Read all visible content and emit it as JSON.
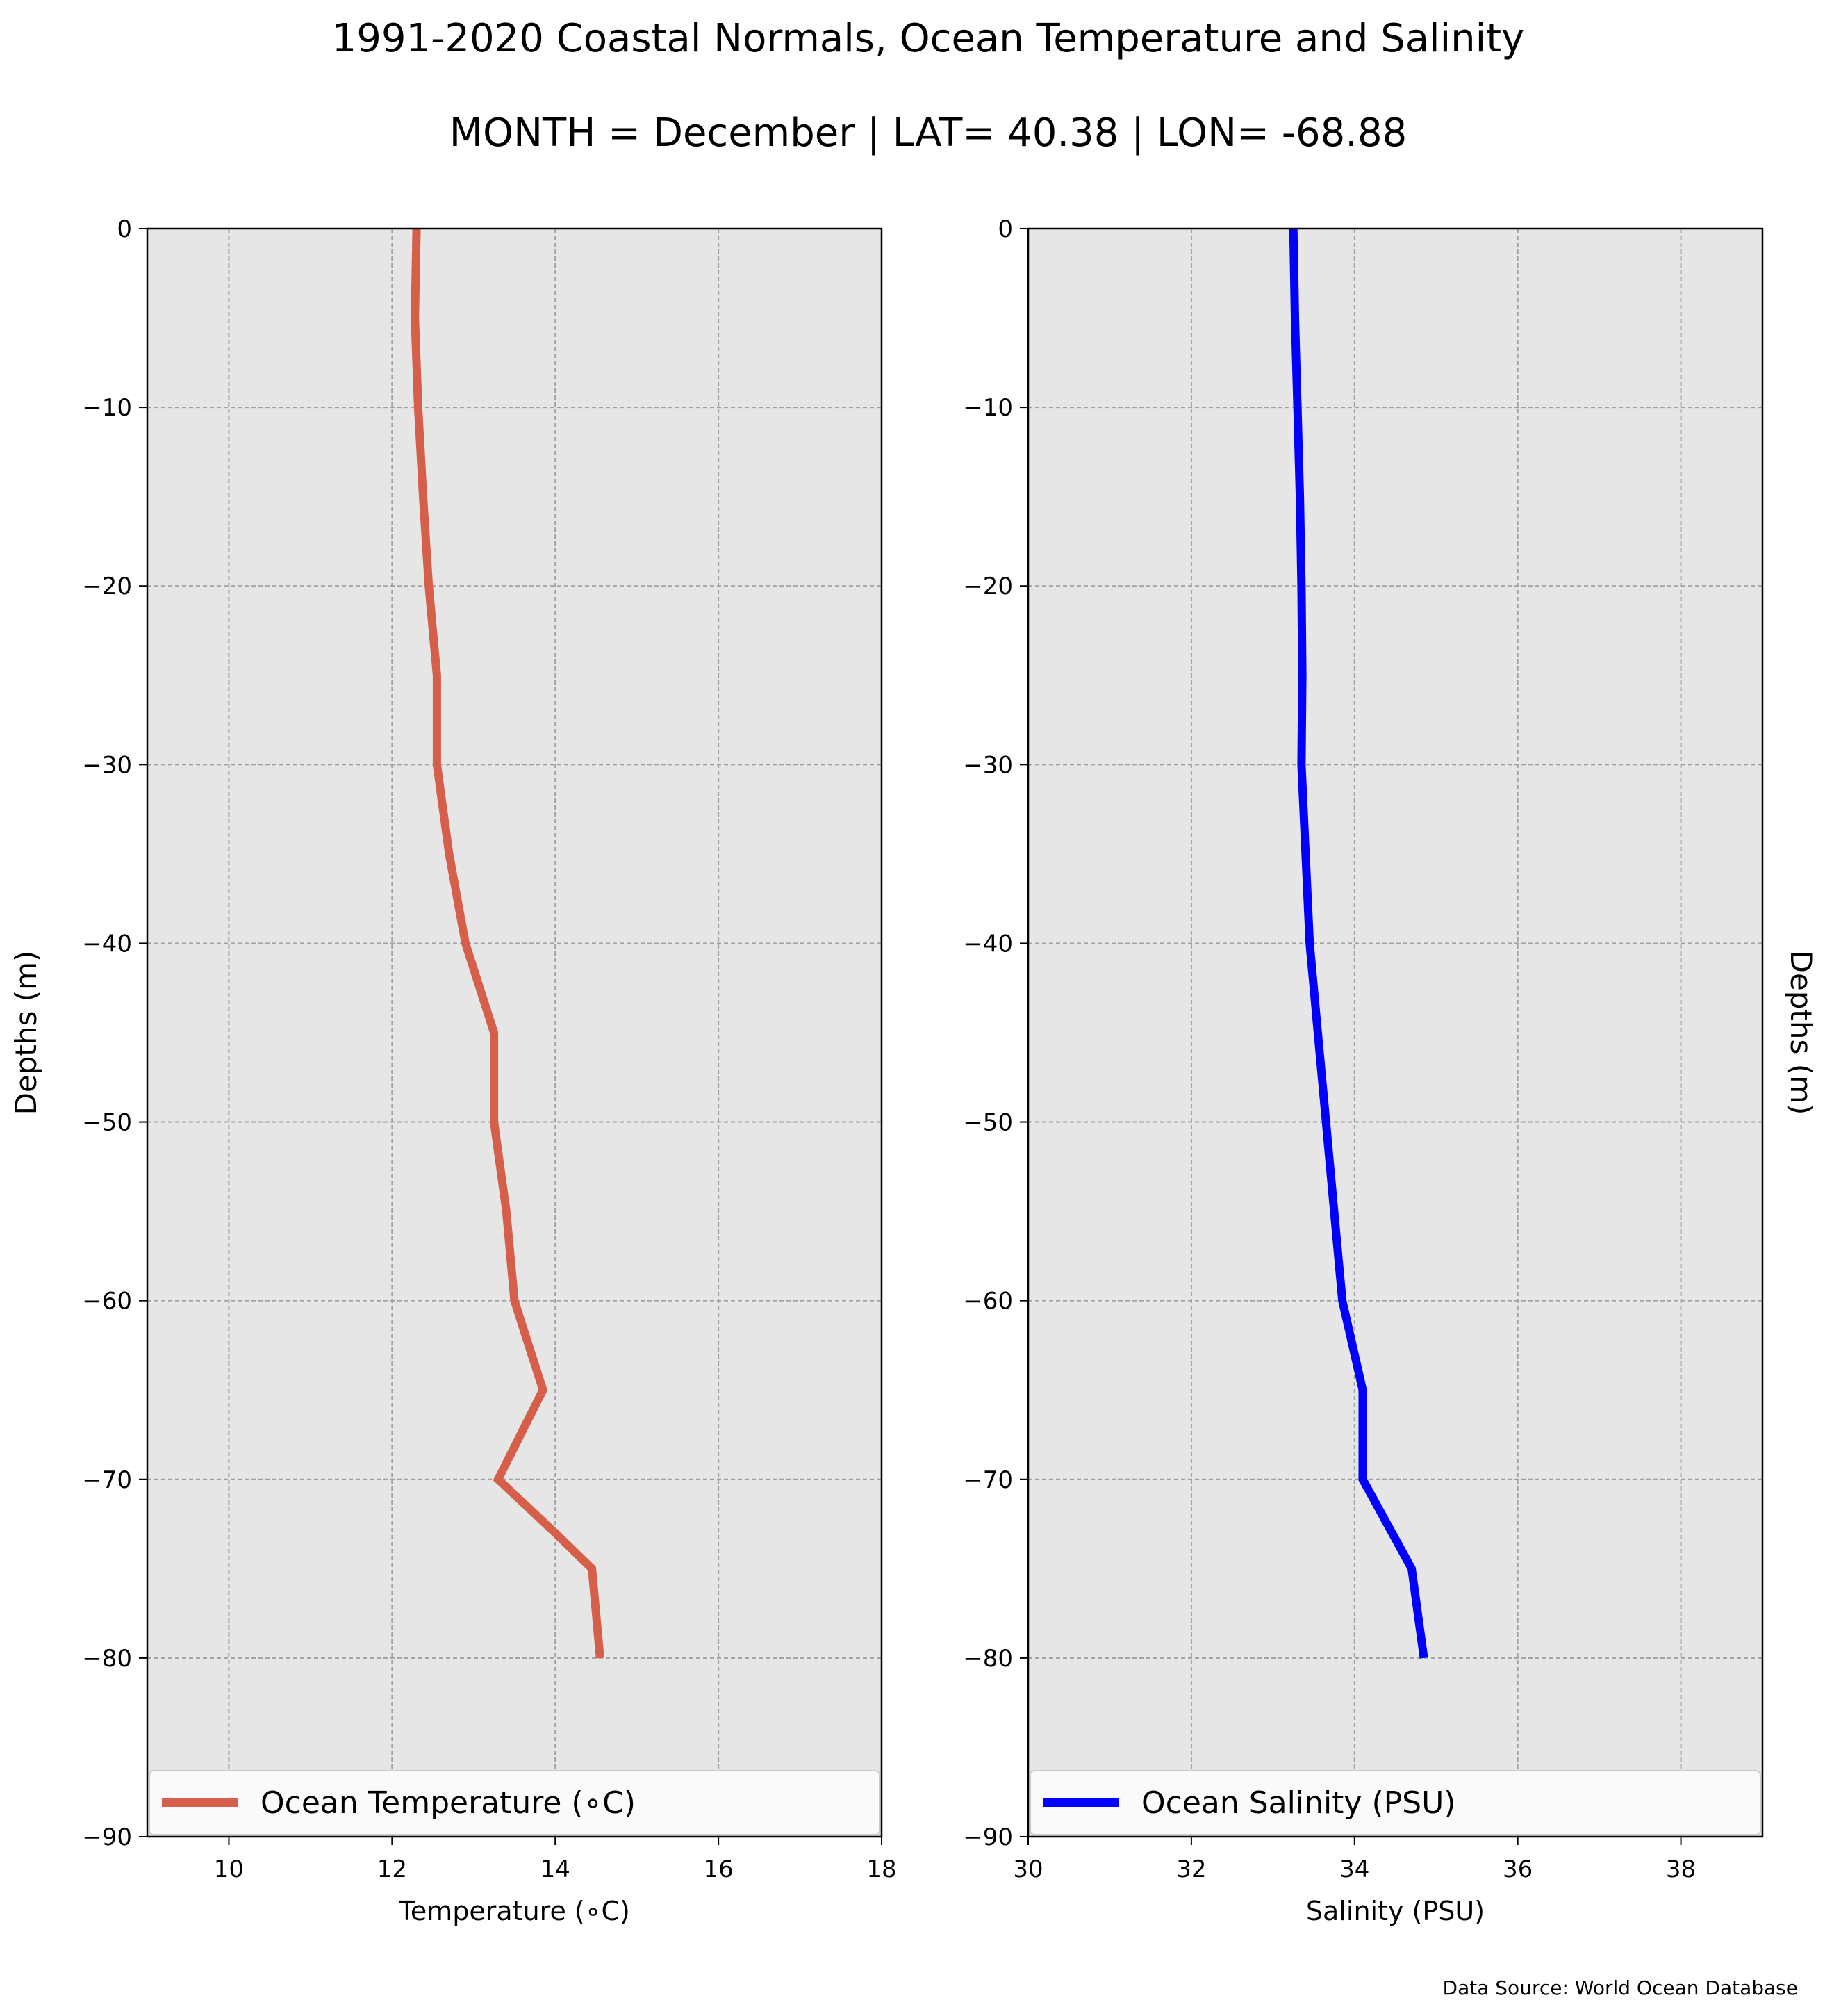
{
  "title": "1991-2020 Coastal Normals, Ocean Temperature and Salinity",
  "subtitle": "MONTH = December | LAT= 40.38 | LON= -68.88",
  "source": "Data Source: World Ocean Database",
  "colors": {
    "plot_bg": "#e6e6e6",
    "grid": "#a0a0a0",
    "temperature": "#d65f4b",
    "salinity": "#0000ff"
  },
  "chart_data": [
    {
      "type": "line",
      "xlabel": "Temperature (∘C)",
      "ylabel": "Depths (m)",
      "xlim": [
        9,
        18
      ],
      "ylim": [
        -90,
        0
      ],
      "xticks": [
        10,
        12,
        14,
        16,
        18
      ],
      "yticks": [
        0,
        -10,
        -20,
        -30,
        -40,
        -50,
        -60,
        -70,
        -80,
        -90
      ],
      "grid": true,
      "legend": "lower center",
      "series": [
        {
          "name": "Ocean Temperature (∘C)",
          "x": [
            12.3,
            12.28,
            12.32,
            12.38,
            12.45,
            12.55,
            12.55,
            12.55,
            12.7,
            12.9,
            13.25,
            13.25,
            13.4,
            13.5,
            13.85,
            13.3,
            14.0,
            14.45,
            14.55
          ],
          "y": [
            0,
            -5,
            -10,
            -15,
            -20,
            -25,
            -27,
            -30,
            -35,
            -40,
            -45,
            -50,
            -55,
            -60,
            -65,
            -70,
            -73,
            -75,
            -80
          ]
        }
      ]
    },
    {
      "type": "line",
      "xlabel": "Salinity (PSU)",
      "ylabel": "Depths (m)",
      "xlim": [
        30,
        39
      ],
      "ylim": [
        -90,
        0
      ],
      "xticks": [
        30,
        32,
        34,
        36,
        38
      ],
      "yticks": [
        0,
        -10,
        -20,
        -30,
        -40,
        -50,
        -60,
        -70,
        -80,
        -90
      ],
      "grid": true,
      "legend": "lower center",
      "series": [
        {
          "name": "Ocean Salinity (PSU)",
          "x": [
            33.25,
            33.27,
            33.3,
            33.33,
            33.35,
            33.36,
            33.35,
            33.4,
            33.45,
            33.55,
            33.65,
            33.75,
            33.85,
            34.1,
            34.1,
            34.7,
            34.85
          ],
          "y": [
            0,
            -5,
            -10,
            -15,
            -20,
            -25,
            -30,
            -35,
            -40,
            -45,
            -50,
            -55,
            -60,
            -65,
            -70,
            -75,
            -80
          ]
        }
      ]
    }
  ]
}
